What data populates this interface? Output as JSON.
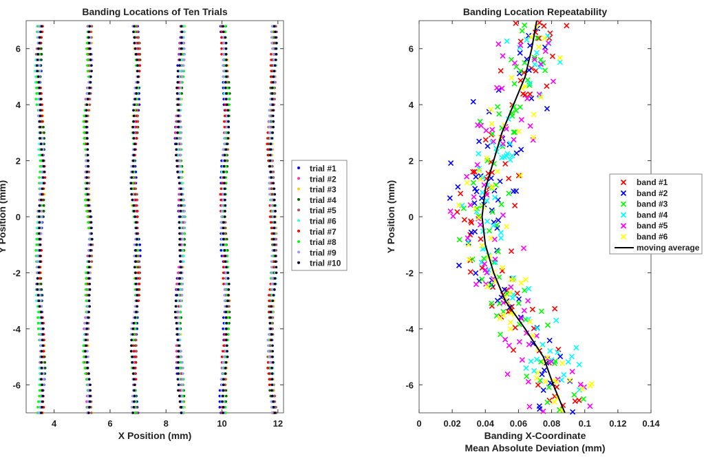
{
  "chart_data": [
    {
      "type": "scatter",
      "title": "Banding Locations of Ten Trials",
      "xlabel": "X Position (mm)",
      "ylabel": "Y Position (mm)",
      "xlim": [
        3,
        12.2
      ],
      "ylim": [
        -7,
        7
      ],
      "xticks": [
        4,
        6,
        8,
        10,
        12
      ],
      "yticks": [
        -6,
        -4,
        -2,
        0,
        2,
        4,
        6
      ],
      "legend_position": "outside-right",
      "band_centers": [
        3.5,
        5.2,
        6.9,
        8.5,
        10.1,
        11.8
      ],
      "series": [
        {
          "name": "trial #1",
          "color": "#0000ff"
        },
        {
          "name": "trial #2",
          "color": "#ff33aa"
        },
        {
          "name": "trial #3",
          "color": "#ffcc00"
        },
        {
          "name": "trial #4",
          "color": "#006600"
        },
        {
          "name": "trial #5",
          "color": "#aa5555"
        },
        {
          "name": "trial #6",
          "color": "#33ffcc"
        },
        {
          "name": "trial #7",
          "color": "#ff0000"
        },
        {
          "name": "trial #8",
          "color": "#00ff00"
        },
        {
          "name": "trial #9",
          "color": "#9999ff"
        },
        {
          "name": "trial #10",
          "color": "#000033"
        }
      ]
    },
    {
      "type": "scatter",
      "title": "Banding Location Repeatability",
      "xlabel": "Banding X-Coordinate",
      "xlabel2": "Mean Absolute Deviation (mm)",
      "ylabel": "Y Position (mm)",
      "xlim": [
        0,
        0.14
      ],
      "ylim": [
        -7,
        7
      ],
      "xticks": [
        0,
        0.02,
        0.04,
        0.06,
        0.08,
        0.1,
        0.12,
        0.14
      ],
      "yticks": [
        -6,
        -4,
        -2,
        0,
        2,
        4,
        6
      ],
      "legend_position": "outside-right",
      "series": [
        {
          "name": "band #1",
          "color": "#ff0000"
        },
        {
          "name": "band #2",
          "color": "#0000ff"
        },
        {
          "name": "band #3",
          "color": "#00ff00"
        },
        {
          "name": "band #4",
          "color": "#00ffff"
        },
        {
          "name": "band #5",
          "color": "#ff00ff"
        },
        {
          "name": "band #6",
          "color": "#ffff00"
        }
      ],
      "moving_average": {
        "name": "moving average",
        "color": "#000000",
        "y": [
          -7,
          -6,
          -5,
          -4,
          -3,
          -2,
          -1,
          0,
          1,
          2,
          3,
          4,
          5,
          6,
          7
        ],
        "x": [
          0.088,
          0.081,
          0.075,
          0.064,
          0.052,
          0.045,
          0.04,
          0.038,
          0.04,
          0.045,
          0.05,
          0.057,
          0.064,
          0.068,
          0.071
        ]
      }
    }
  ]
}
